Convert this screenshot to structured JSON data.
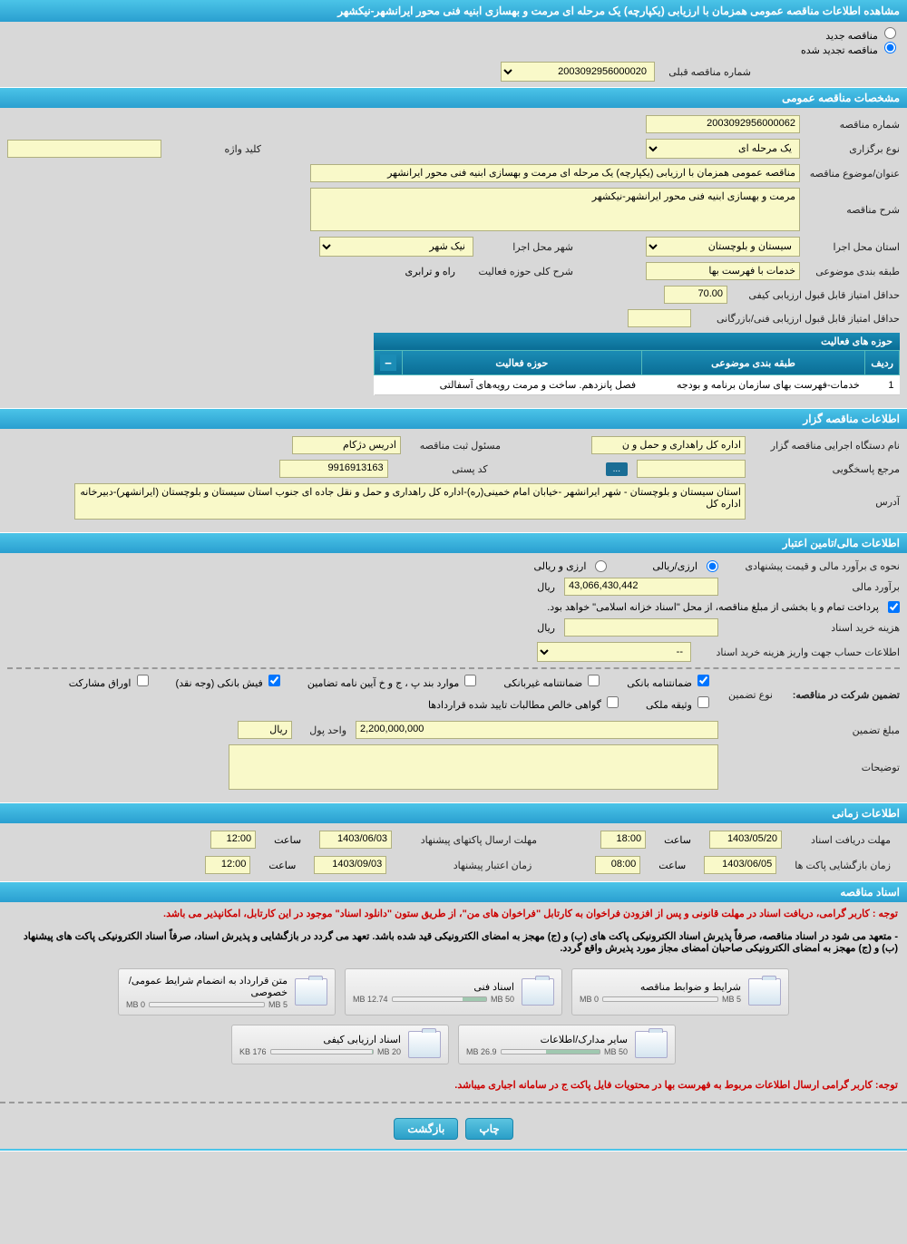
{
  "page": {
    "title": "مشاهده اطلاعات مناقصه عمومی همزمان با ارزیابی (یکپارچه) یک مرحله ای مرمت و بهسازی ابنیه فنی محور ایرانشهر-نیکشهر"
  },
  "status": {
    "radio_new": "مناقصه جدید",
    "radio_renewed": "مناقصه تجدید شده",
    "prev_num_label": "شماره مناقصه قبلی",
    "prev_num_value": "2003092956000020"
  },
  "section1": {
    "header": "مشخصات مناقصه عمومی",
    "tender_num_label": "شماره مناقصه",
    "tender_num_value": "2003092956000062",
    "type_label": "نوع برگزاری",
    "type_value": "یک مرحله ای",
    "keyword_label": "کلید واژه",
    "keyword_value": "",
    "title_label": "عنوان/موضوع مناقصه",
    "title_value": "مناقصه عمومی همزمان با ارزیابی (یکپارچه) یک مرحله ای مرمت و بهسازی ابنیه فنی محور ایرانشهر",
    "desc_label": "شرح مناقصه",
    "desc_value": "مرمت و بهسازی ابنیه فنی محور ایرانشهر-نیکشهر",
    "province_label": "استان محل اجرا",
    "province_value": "سیستان و بلوچستان",
    "city_label": "شهر محل اجرا",
    "city_value": "نیک شهر",
    "category_label": "طبقه بندی موضوعی",
    "category_value": "خدمات با فهرست بها",
    "activity_gen_label": "شرح کلی حوزه فعالیت",
    "activity_gen_value": "راه و ترابری",
    "min_score_label": "حداقل امتیاز قابل قبول ارزیابی کیفی",
    "min_score_value": "70.00",
    "min_tech_score_label": "حداقل امتیاز قابل قبول ارزیابی فنی/بازرگانی",
    "min_tech_score_value": ""
  },
  "activity_table": {
    "title": "حوزه های فعالیت",
    "col_row": "ردیف",
    "col_category": "طبقه بندی موضوعی",
    "col_field": "حوزه فعالیت",
    "row1": {
      "num": "1",
      "cat": "خدمات-فهرست بهای سازمان برنامه و بودجه",
      "field": "فصل پانزدهم. ساخت و مرمت رویه‌های آسفالتی"
    }
  },
  "section2": {
    "header": "اطلاعات مناقصه گزار",
    "agency_label": "نام دستگاه اجرایی مناقصه گزار",
    "agency_value": "اداره کل راهداری و حمل و ن",
    "responsible_label": "مسئول ثبت مناقصه",
    "responsible_value": "ادریس دژکام",
    "phone_label": "مرجع پاسخگویی",
    "phone_value": "",
    "phone_btn": "...",
    "postal_label": "کد پستی",
    "postal_value": "9916913163",
    "address_label": "آدرس",
    "address_value": "استان سیستان و بلوچستان - شهر ایرانشهر -خیابان امام خمینی(ره)-اداره کل راهداری و حمل و نقل جاده ای جنوب استان سیستان و بلوچستان (ایرانشهر)-دبیرخانه اداره کل"
  },
  "section3": {
    "header": "اطلاعات مالی/تامین اعتبار",
    "price_method_label": "نحوه ی برآورد مالی و قیمت پیشنهادی",
    "price_opt1": "ارزی/ریالی",
    "price_opt2": "ارزی و ریالی",
    "estimate_label": "برآورد مالی",
    "estimate_value": "43,066,430,442",
    "currency": "ریال",
    "treasury_label": "پرداخت تمام و یا بخشی از مبلغ مناقصه، از محل \"اسناد خزانه اسلامی\" خواهد بود.",
    "doc_cost_label": "هزینه خرید اسناد",
    "doc_cost_value": "",
    "account_label": "اطلاعات حساب جهت واریز هزینه خرید اسناد",
    "account_value": "--"
  },
  "guarantees": {
    "type_label": "تضمین شرکت در مناقصه:",
    "sub_label": "نوع تضمین",
    "bank_guarantee": "ضمانتنامه بانکی",
    "nonbank_guarantee": "ضمانتنامه غیربانکی",
    "regulations": "موارد بند پ ، ج و خ آیین نامه تضامین",
    "bank_slip": "فیش بانکی (وجه نقد)",
    "securities": "اوراق مشارکت",
    "property": "وثیقه ملکی",
    "confirmed": "گواهی خالص مطالبات تایید شده قراردادها",
    "amount_label": "مبلغ تضمین",
    "amount_value": "2,200,000,000",
    "unit_label": "واحد پول",
    "unit_value": "ریال",
    "desc_label": "توضیحات"
  },
  "section4": {
    "header": "اطلاعات زمانی",
    "doc_deadline_label": "مهلت دریافت اسناد",
    "doc_deadline_date": "1403/05/20",
    "doc_deadline_hour_label": "ساعت",
    "doc_deadline_hour": "18:00",
    "submit_deadline_label": "مهلت ارسال پاکتهای پیشنهاد",
    "submit_deadline_date": "1403/06/03",
    "submit_deadline_hour": "12:00",
    "opening_label": "زمان بازگشایی پاکت ها",
    "opening_date": "1403/06/05",
    "opening_hour": "08:00",
    "validity_label": "زمان اعتبار پیشنهاد",
    "validity_date": "1403/09/03",
    "validity_hour": "12:00"
  },
  "section5": {
    "header": "اسناد مناقصه",
    "notice1": "توجه : کاربر گرامی، دریافت اسناد در مهلت قانونی و پس از افزودن فراخوان به کارتابل \"فراخوان های من\"، از طریق ستون \"دانلود اسناد\" موجود در این کارتابل، امکانپذیر می باشد.",
    "notice2": "- متعهد می شود در اسناد مناقصه، صرفاً پذیرش اسناد الکترونیکی پاکت های (ب) و (ج) مهجز به امضای الکترونیکی قید شده باشد. تعهد می گردد در بازگشایی و پذیرش اسناد، صرفاً اسناد الکترونیکی پاکت های پیشنهاد (ب) و (ج) مهجز به امضای الکترونیکی صاحبان امضای مجاز مورد پذیرش واقع گردد.",
    "notice3": "توجه: کاربر گرامی ارسال اطلاعات مربوط به فهرست بها در محتویات فایل پاکت ج در سامانه اجباری میباشد."
  },
  "docs": [
    {
      "title": "شرایط و ضوابط مناقصه",
      "used": "0 MB",
      "total": "5 MB",
      "pct": 0
    },
    {
      "title": "اسناد فنی",
      "used": "12.74 MB",
      "total": "50 MB",
      "pct": 25
    },
    {
      "title": "متن قرارداد به انضمام شرایط عمومی/خصوصی",
      "used": "0 MB",
      "total": "5 MB",
      "pct": 0
    },
    {
      "title": "سایر مدارک/اطلاعات",
      "used": "26.9 MB",
      "total": "50 MB",
      "pct": 54
    },
    {
      "title": "اسناد ارزیابی کیفی",
      "used": "176 KB",
      "total": "20 MB",
      "pct": 1
    }
  ],
  "buttons": {
    "print": "چاپ",
    "back": "بازگشت"
  },
  "colors": {
    "header_bg": "#4bc4e8",
    "yellow": "#f9f9c9",
    "page_bg": "#d8d8d8"
  }
}
